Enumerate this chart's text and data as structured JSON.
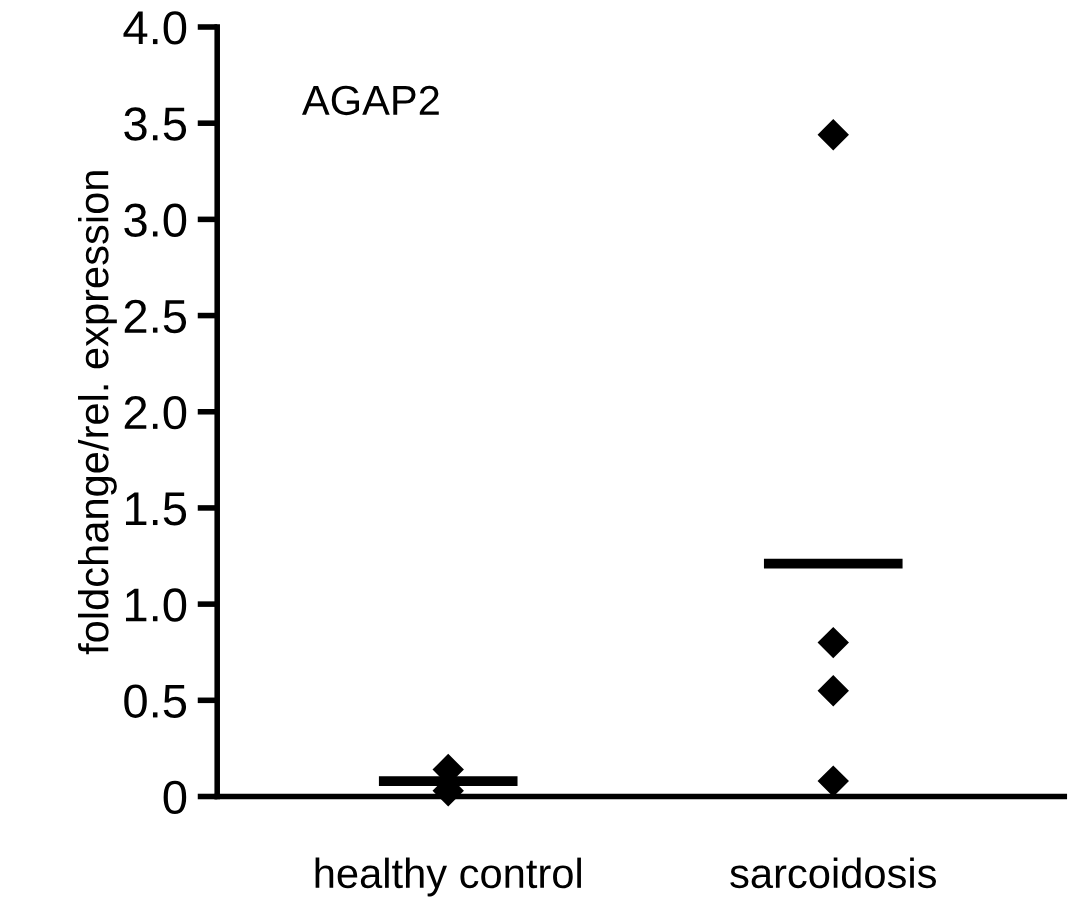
{
  "chart_data": {
    "type": "scatter",
    "ylabel": "foldchange/rel. expression",
    "categories": [
      "healthy control",
      "sarcoidosis"
    ],
    "series": [
      {
        "type": "bar",
        "color": "#000000",
        "base": [
          0.08,
          1.21
        ],
        "values": [
          0,
          0
        ]
      },
      {
        "marker": "diamond",
        "color": "#000000",
        "x": [
          "healthy control",
          "healthy control",
          "sarcoidosis",
          "sarcoidosis",
          "sarcoidosis",
          "sarcoidosis"
        ],
        "values": [
          0.14,
          0.03,
          3.44,
          0.8,
          0.55,
          0.08
        ]
      }
    ],
    "ylim": [
      0,
      4.0
    ],
    "yticks": [
      {
        "value": 0,
        "label": "0"
      },
      {
        "value": 0.5,
        "label": "0.5"
      },
      {
        "value": 1.0,
        "label": "1.0"
      },
      {
        "value": 1.5,
        "label": "1.5"
      },
      {
        "value": 2.0,
        "label": "2.0"
      },
      {
        "value": 2.5,
        "label": "2.5"
      },
      {
        "value": 3.0,
        "label": "3.0"
      },
      {
        "value": 3.5,
        "label": "3.5"
      },
      {
        "value": 4.0,
        "label": "4.0"
      }
    ],
    "annotations": [
      "AGAP2"
    ],
    "grid": false,
    "legend": false
  }
}
